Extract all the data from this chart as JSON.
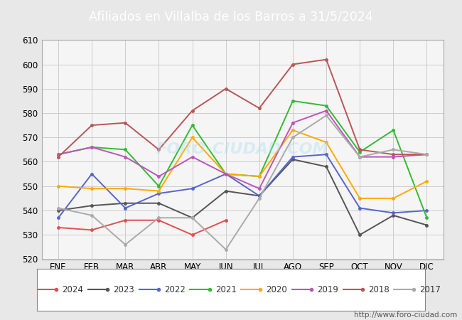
{
  "title": "Afiliados en Villalba de los Barros a 31/5/2024",
  "title_color": "#ffffff",
  "header_color": "#4472c4",
  "background_color": "#e8e8e8",
  "plot_bg_color": "#f5f5f5",
  "xlabel": "",
  "ylabel": "",
  "ylim": [
    520,
    610
  ],
  "yticks": [
    520,
    530,
    540,
    550,
    560,
    570,
    580,
    590,
    600,
    610
  ],
  "months": [
    "ENE",
    "FEB",
    "MAR",
    "ABR",
    "MAY",
    "JUN",
    "JUL",
    "AGO",
    "SEP",
    "OCT",
    "NOV",
    "DIC"
  ],
  "watermark": "http://www.foro-ciudad.com",
  "series": {
    "2024": {
      "color": "#e05050",
      "data": [
        533,
        532,
        536,
        536,
        530,
        536,
        null,
        null,
        null,
        null,
        null,
        null
      ]
    },
    "2023": {
      "color": "#555555",
      "data": [
        540,
        542,
        543,
        543,
        537,
        548,
        546,
        561,
        558,
        530,
        538,
        534
      ]
    },
    "2022": {
      "color": "#5566cc",
      "data": [
        537,
        555,
        541,
        547,
        549,
        555,
        546,
        562,
        563,
        541,
        539,
        540
      ]
    },
    "2021": {
      "color": "#33bb33",
      "data": [
        563,
        566,
        565,
        550,
        575,
        555,
        554,
        585,
        583,
        564,
        573,
        537
      ]
    },
    "2020": {
      "color": "#ffaa00",
      "data": [
        550,
        549,
        549,
        548,
        570,
        555,
        554,
        573,
        568,
        545,
        545,
        552
      ]
    },
    "2019": {
      "color": "#bb55bb",
      "data": [
        563,
        566,
        562,
        554,
        562,
        555,
        549,
        576,
        581,
        562,
        562,
        563
      ]
    },
    "2018": {
      "color": "#bb5555",
      "data": [
        562,
        575,
        576,
        565,
        581,
        590,
        582,
        600,
        602,
        565,
        563,
        563
      ]
    },
    "2017": {
      "color": "#aaaaaa",
      "data": [
        541,
        538,
        526,
        537,
        537,
        524,
        545,
        570,
        579,
        562,
        565,
        563
      ]
    }
  },
  "legend_order": [
    "2024",
    "2023",
    "2022",
    "2021",
    "2020",
    "2019",
    "2018",
    "2017"
  ]
}
